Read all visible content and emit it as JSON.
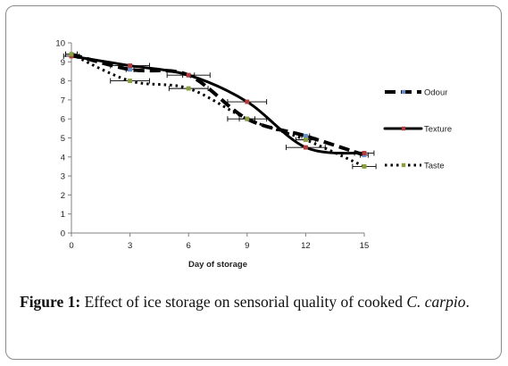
{
  "chart_data": {
    "type": "line",
    "xlabel": "Day of storage",
    "ylabel": "",
    "xlim": [
      0,
      15
    ],
    "ylim": [
      0,
      10
    ],
    "xticks": [
      0,
      3,
      6,
      9,
      12,
      15
    ],
    "yticks": [
      0,
      1,
      2,
      3,
      4,
      5,
      6,
      7,
      8,
      9,
      10
    ],
    "grid": false,
    "legend_position": "right",
    "series": [
      {
        "name": "Odour",
        "style": "long-dash",
        "color": "#000000",
        "marker_color": "#6a8fc8",
        "x": [
          0,
          3,
          6,
          9,
          12,
          15
        ],
        "y": [
          9.4,
          8.6,
          8.3,
          6.0,
          5.1,
          4.1
        ],
        "err": [
          0.3,
          0.2,
          0.3,
          0.4,
          0.2,
          0.2
        ]
      },
      {
        "name": "Texture",
        "style": "solid",
        "color": "#000000",
        "marker_color": "#b23a3a",
        "x": [
          0,
          3,
          6,
          9,
          12,
          15
        ],
        "y": [
          9.3,
          8.8,
          8.3,
          6.9,
          4.5,
          4.2
        ],
        "err": [
          0.4,
          1.0,
          1.1,
          1.0,
          1.0,
          0.5
        ]
      },
      {
        "name": "Taste",
        "style": "dotted",
        "color": "#000000",
        "marker_color": "#8aa040",
        "x": [
          0,
          3,
          6,
          9,
          12,
          15
        ],
        "y": [
          9.4,
          8.0,
          7.6,
          6.0,
          4.9,
          3.5
        ],
        "err": [
          0.3,
          1.0,
          1.0,
          1.0,
          0.5,
          0.6
        ]
      }
    ]
  },
  "caption": {
    "lead": "Figure 1:",
    "text": " Effect of ice storage on sensorial quality of cooked ",
    "species": "C. carpio",
    "end": "."
  }
}
